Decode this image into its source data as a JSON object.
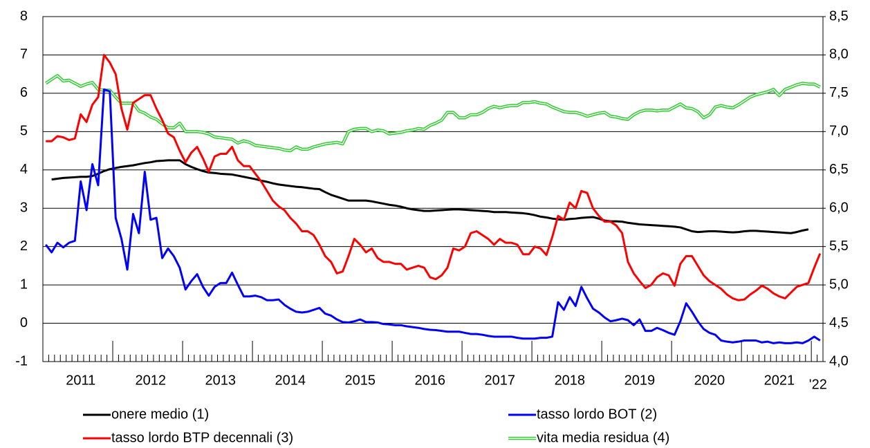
{
  "chart_data": {
    "type": "line",
    "categories": [
      null,
      null,
      null,
      null,
      null,
      null,
      "2011",
      null,
      null,
      null,
      null,
      null,
      null,
      null,
      null,
      null,
      null,
      null,
      "2012",
      null,
      null,
      null,
      null,
      null,
      null,
      null,
      null,
      null,
      null,
      null,
      "2013",
      null,
      null,
      null,
      null,
      null,
      null,
      null,
      null,
      null,
      null,
      null,
      "2014",
      null,
      null,
      null,
      null,
      null,
      null,
      null,
      null,
      null,
      null,
      null,
      "2015",
      null,
      null,
      null,
      null,
      null,
      null,
      null,
      null,
      null,
      null,
      null,
      "2016",
      null,
      null,
      null,
      null,
      null,
      null,
      null,
      null,
      null,
      null,
      null,
      "2017",
      null,
      null,
      null,
      null,
      null,
      null,
      null,
      null,
      null,
      null,
      null,
      "2018",
      null,
      null,
      null,
      null,
      null,
      null,
      null,
      null,
      null,
      null,
      null,
      "2019",
      null,
      null,
      null,
      null,
      null,
      null,
      null,
      null,
      null,
      null,
      null,
      "2020",
      null,
      null,
      null,
      null,
      null,
      null,
      null,
      null,
      null,
      null,
      null,
      "2021",
      null,
      null,
      null,
      null,
      null,
      null,
      "'22"
    ],
    "ylim": [
      -1,
      8
    ],
    "yticks": [
      -1,
      0,
      1,
      2,
      3,
      4,
      5,
      6,
      7,
      8
    ],
    "y2lim": [
      4.0,
      8.5
    ],
    "y2ticks": [
      {
        "value": 4.0,
        "label": "4,0"
      },
      {
        "value": 4.5,
        "label": "4,5"
      },
      {
        "value": 5.0,
        "label": "5,0"
      },
      {
        "value": 5.5,
        "label": "5,5"
      },
      {
        "value": 6.0,
        "label": "6,0"
      },
      {
        "value": 6.5,
        "label": "6,5"
      },
      {
        "value": 7.0,
        "label": "7,0"
      },
      {
        "value": 7.5,
        "label": "7,5"
      },
      {
        "value": 8.0,
        "label": "8,0"
      },
      {
        "value": 8.5,
        "label": "8,5"
      }
    ],
    "grid": true,
    "legend": "bottom",
    "series": [
      {
        "name": "onere medio (1)",
        "color": "#000000",
        "values": [
          null,
          3.75,
          3.77,
          3.79,
          3.8,
          3.81,
          3.82,
          3.82,
          3.84,
          3.9,
          3.97,
          4.02,
          4.05,
          4.08,
          4.1,
          4.12,
          4.15,
          4.18,
          4.2,
          4.23,
          4.24,
          4.25,
          4.25,
          4.25,
          4.15,
          4.08,
          4.02,
          3.97,
          3.93,
          3.92,
          3.9,
          3.89,
          3.88,
          3.85,
          3.82,
          3.79,
          3.76,
          3.72,
          3.69,
          3.65,
          3.62,
          3.6,
          3.58,
          3.56,
          3.55,
          3.53,
          3.51,
          3.5,
          3.42,
          3.35,
          3.3,
          3.25,
          3.2,
          3.2,
          3.2,
          3.2,
          3.18,
          3.15,
          3.12,
          3.09,
          3.07,
          3.04,
          3.0,
          2.97,
          2.95,
          2.93,
          2.93,
          2.94,
          2.95,
          2.96,
          2.97,
          2.97,
          2.96,
          2.95,
          2.94,
          2.93,
          2.92,
          2.9,
          2.9,
          2.9,
          2.89,
          2.88,
          2.87,
          2.85,
          2.82,
          2.78,
          2.76,
          2.73,
          2.71,
          2.7,
          2.72,
          2.73,
          2.75,
          2.76,
          2.77,
          2.73,
          2.68,
          2.66,
          2.66,
          2.65,
          2.62,
          2.6,
          2.58,
          2.57,
          2.56,
          2.55,
          2.54,
          2.53,
          2.52,
          2.5,
          2.45,
          2.4,
          2.38,
          2.39,
          2.4,
          2.4,
          2.39,
          2.38,
          2.37,
          2.38,
          2.4,
          2.41,
          2.41,
          2.4,
          2.39,
          2.38,
          2.37,
          2.36,
          2.35,
          2.38,
          2.42,
          2.45,
          null,
          null
        ]
      },
      {
        "name": "tasso lordo BOT (2)",
        "color": "#0000ff",
        "values": [
          2.05,
          1.85,
          2.1,
          1.98,
          2.1,
          2.15,
          3.7,
          2.95,
          4.15,
          3.6,
          6.1,
          6.05,
          2.75,
          2.2,
          1.4,
          2.85,
          2.35,
          3.95,
          2.7,
          2.75,
          1.7,
          1.95,
          1.75,
          1.45,
          0.88,
          1.1,
          1.28,
          0.95,
          0.72,
          0.95,
          1.05,
          1.05,
          1.32,
          1.0,
          0.7,
          0.7,
          0.72,
          0.68,
          0.6,
          0.6,
          0.62,
          0.48,
          0.38,
          0.3,
          0.28,
          0.3,
          0.35,
          0.4,
          0.25,
          0.2,
          0.1,
          0.03,
          0.02,
          0.05,
          0.1,
          0.03,
          0.03,
          0.02,
          -0.02,
          -0.03,
          -0.05,
          -0.05,
          -0.08,
          -0.1,
          -0.12,
          -0.15,
          -0.17,
          -0.18,
          -0.2,
          -0.22,
          -0.22,
          -0.22,
          -0.25,
          -0.28,
          -0.28,
          -0.3,
          -0.33,
          -0.35,
          -0.35,
          -0.35,
          -0.35,
          -0.38,
          -0.4,
          -0.4,
          -0.4,
          -0.38,
          -0.38,
          -0.35,
          0.55,
          0.35,
          0.68,
          0.45,
          0.95,
          0.65,
          0.38,
          0.28,
          0.15,
          0.05,
          0.08,
          0.12,
          0.08,
          -0.05,
          0.1,
          -0.2,
          -0.2,
          -0.12,
          -0.18,
          -0.25,
          -0.3,
          0.05,
          0.52,
          0.3,
          0.05,
          -0.15,
          -0.25,
          -0.3,
          -0.45,
          -0.48,
          -0.5,
          -0.48,
          -0.45,
          -0.45,
          -0.45,
          -0.5,
          -0.48,
          -0.52,
          -0.5,
          -0.52,
          -0.52,
          -0.5,
          -0.52,
          -0.45,
          -0.35,
          -0.45
        ]
      },
      {
        "name": "tasso lordo BTP decennali (3)",
        "color": "#ff0000",
        "values": [
          4.75,
          4.75,
          4.88,
          4.85,
          4.78,
          4.82,
          5.45,
          5.25,
          5.7,
          5.9,
          7.0,
          6.8,
          6.5,
          5.6,
          5.05,
          5.75,
          5.85,
          5.95,
          5.95,
          5.6,
          5.3,
          4.95,
          4.85,
          4.5,
          4.2,
          4.45,
          4.6,
          4.3,
          3.95,
          4.35,
          4.42,
          4.42,
          4.6,
          4.25,
          4.1,
          4.1,
          3.9,
          3.7,
          3.45,
          3.2,
          3.05,
          2.95,
          2.75,
          2.6,
          2.4,
          2.4,
          2.3,
          2.05,
          1.75,
          1.6,
          1.3,
          1.35,
          1.75,
          2.2,
          2.05,
          1.85,
          1.95,
          1.7,
          1.6,
          1.6,
          1.55,
          1.55,
          1.4,
          1.45,
          1.5,
          1.45,
          1.2,
          1.15,
          1.25,
          1.45,
          1.95,
          1.9,
          2.0,
          2.35,
          2.4,
          2.3,
          2.2,
          2.05,
          2.2,
          2.1,
          2.1,
          2.05,
          1.8,
          1.8,
          2.0,
          1.95,
          1.78,
          2.25,
          2.8,
          2.7,
          3.15,
          3.0,
          3.45,
          3.4,
          3.0,
          2.8,
          2.65,
          2.65,
          2.55,
          2.35,
          1.6,
          1.3,
          1.1,
          0.92,
          1.0,
          1.2,
          1.3,
          1.25,
          0.98,
          1.55,
          1.75,
          1.75,
          1.5,
          1.25,
          1.1,
          1.0,
          0.9,
          0.75,
          0.65,
          0.6,
          0.62,
          0.75,
          0.85,
          0.98,
          0.9,
          0.78,
          0.7,
          0.65,
          0.8,
          0.95,
          1.0,
          1.05,
          1.45,
          1.82
        ]
      },
      {
        "name": "vita media residua (4)",
        "color": "#33cc33",
        "axis": "y2",
        "values": [
          7.63,
          7.68,
          7.73,
          7.66,
          7.67,
          7.63,
          7.59,
          7.62,
          7.64,
          7.55,
          7.54,
          7.54,
          7.45,
          7.37,
          7.37,
          7.37,
          7.27,
          7.24,
          7.19,
          7.16,
          7.1,
          7.05,
          7.05,
          7.11,
          7.0,
          7.0,
          7.0,
          6.99,
          6.97,
          6.93,
          6.92,
          6.91,
          6.9,
          6.85,
          6.88,
          6.86,
          6.82,
          6.81,
          6.8,
          6.79,
          6.78,
          6.76,
          6.75,
          6.8,
          6.77,
          6.77,
          6.8,
          6.82,
          6.84,
          6.85,
          6.86,
          6.84,
          7.0,
          7.03,
          7.04,
          7.04,
          7.0,
          7.02,
          7.01,
          6.97,
          6.98,
          6.99,
          7.01,
          7.02,
          7.04,
          7.03,
          7.08,
          7.11,
          7.15,
          7.25,
          7.25,
          7.18,
          7.18,
          7.22,
          7.22,
          7.25,
          7.3,
          7.33,
          7.31,
          7.33,
          7.34,
          7.34,
          7.38,
          7.38,
          7.39,
          7.37,
          7.36,
          7.32,
          7.29,
          7.26,
          7.25,
          7.25,
          7.23,
          7.2,
          7.22,
          7.24,
          7.25,
          7.2,
          7.19,
          7.17,
          7.16,
          7.22,
          7.26,
          7.28,
          7.28,
          7.27,
          7.28,
          7.28,
          7.32,
          7.36,
          7.31,
          7.3,
          7.26,
          7.18,
          7.22,
          7.32,
          7.34,
          7.32,
          7.31,
          7.35,
          7.4,
          7.45,
          7.48,
          7.5,
          7.52,
          7.55,
          7.47,
          7.55,
          7.58,
          7.61,
          7.63,
          7.62,
          7.62,
          7.58
        ]
      }
    ]
  }
}
